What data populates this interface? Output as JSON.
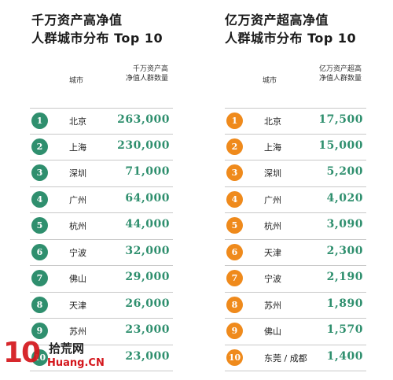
{
  "left": {
    "title_line1": "千万资产高净值",
    "title_line2": "人群城市分布 Top 10",
    "header_city": "城市",
    "header_count_line1": "千万资产高",
    "header_count_line2": "净值人群数量",
    "rows": [
      {
        "rank": "1",
        "city": "北京",
        "count": "263,000"
      },
      {
        "rank": "2",
        "city": "上海",
        "count": "230,000"
      },
      {
        "rank": "3",
        "city": "深圳",
        "count": "71,000"
      },
      {
        "rank": "4",
        "city": "广州",
        "count": "64,000"
      },
      {
        "rank": "5",
        "city": "杭州",
        "count": "44,000"
      },
      {
        "rank": "6",
        "city": "宁波",
        "count": "32,000"
      },
      {
        "rank": "7",
        "city": "佛山",
        "count": "29,000"
      },
      {
        "rank": "8",
        "city": "天津",
        "count": "26,000"
      },
      {
        "rank": "9",
        "city": "苏州",
        "count": "23,000"
      },
      {
        "rank": "10",
        "city": "",
        "count": "23,000"
      }
    ]
  },
  "right": {
    "title_line1": "亿万资产超高净值",
    "title_line2": "人群城市分布 Top 10",
    "header_city": "城市",
    "header_count_line1": "亿万资产超高",
    "header_count_line2": "净值人群数量",
    "rows": [
      {
        "rank": "1",
        "city": "北京",
        "count": "17,500"
      },
      {
        "rank": "2",
        "city": "上海",
        "count": "15,000"
      },
      {
        "rank": "3",
        "city": "深圳",
        "count": "5,200"
      },
      {
        "rank": "4",
        "city": "广州",
        "count": "4,020"
      },
      {
        "rank": "5",
        "city": "杭州",
        "count": "3,090"
      },
      {
        "rank": "6",
        "city": "天津",
        "count": "2,300"
      },
      {
        "rank": "7",
        "city": "宁波",
        "count": "2,190"
      },
      {
        "rank": "8",
        "city": "苏州",
        "count": "1,890"
      },
      {
        "rank": "9",
        "city": "佛山",
        "count": "1,570"
      },
      {
        "rank": "10",
        "city": "东莞 / 成都",
        "count": "1,400"
      }
    ]
  },
  "watermark": {
    "mark": "10",
    "text_cn": "拾荒网",
    "text_en": "Huang.CN"
  },
  "colors": {
    "left_badge": "#2f8f6e",
    "right_badge": "#ef8a1c",
    "count_text": "#2f8f6e",
    "watermark_red": "#d4161c"
  }
}
